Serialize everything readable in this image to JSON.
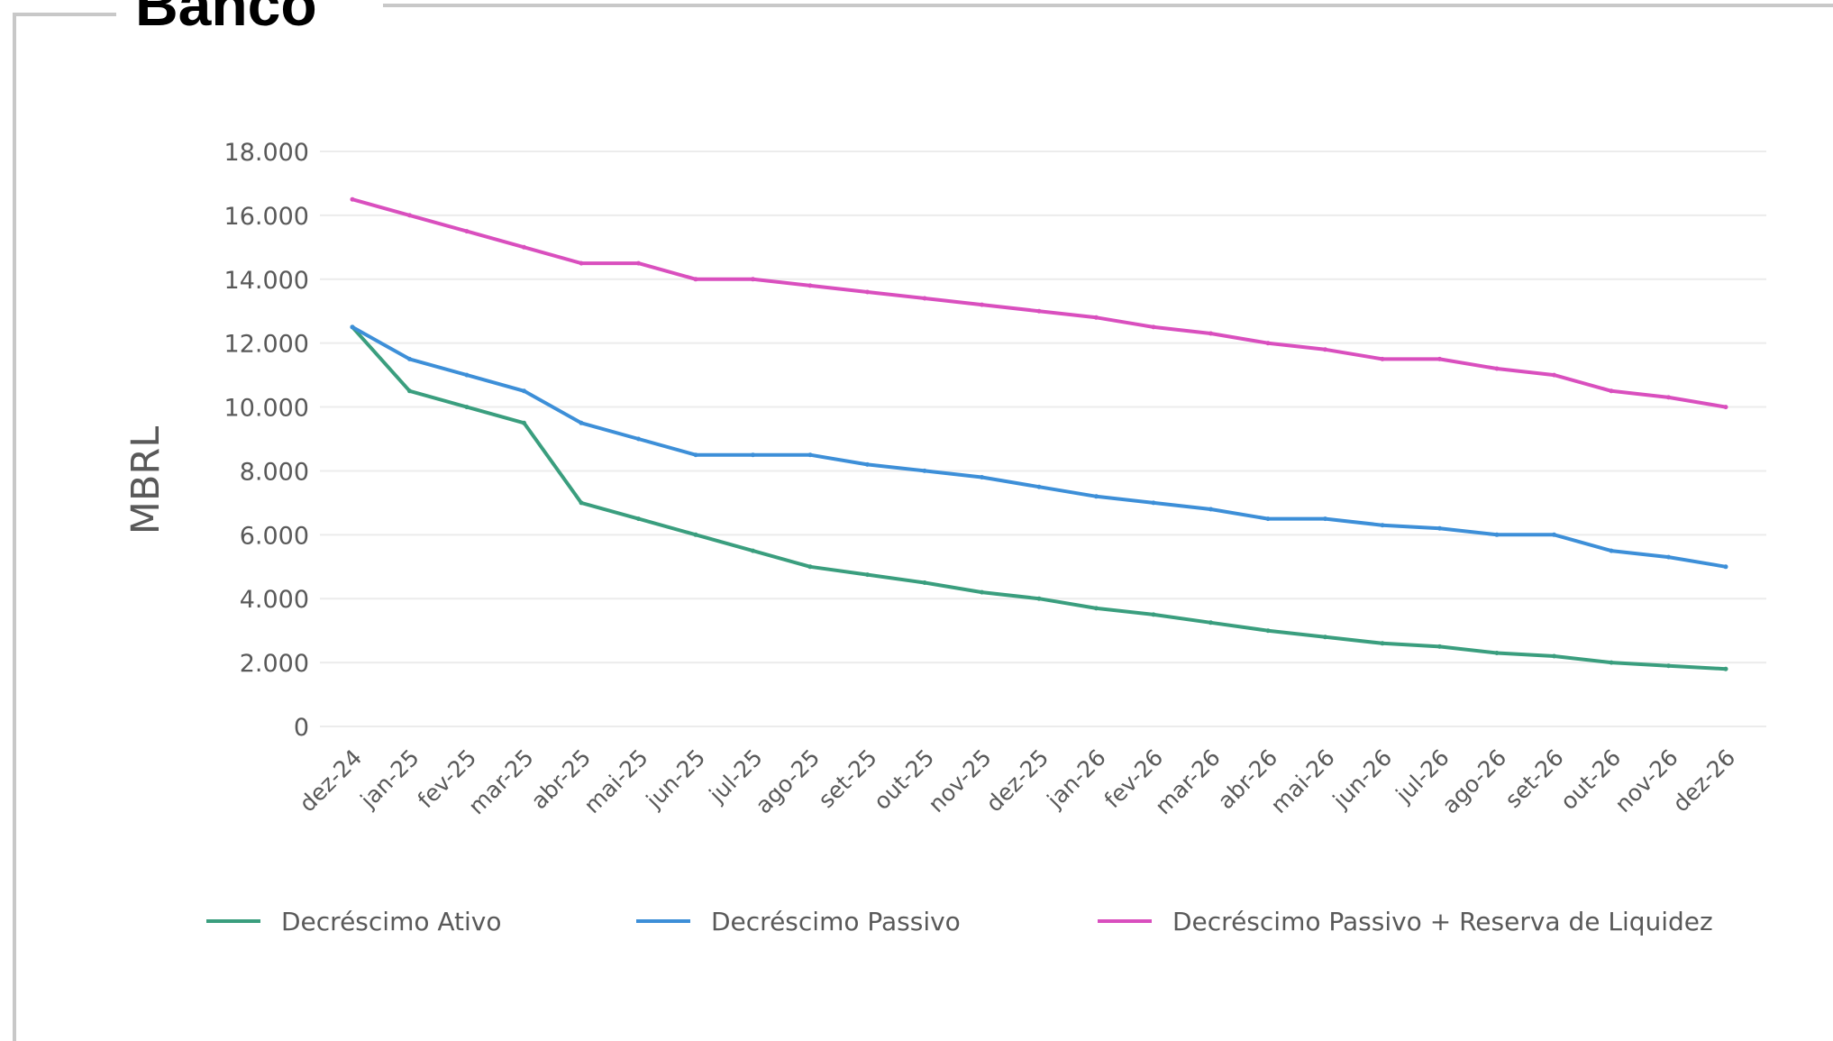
{
  "section": {
    "title": "Banco"
  },
  "chart_data": {
    "type": "line",
    "title": "",
    "xlabel": "",
    "ylabel": "MBRL",
    "ylim": [
      0,
      18000
    ],
    "yticks": [
      0,
      2000,
      4000,
      6000,
      8000,
      10000,
      12000,
      14000,
      16000,
      18000
    ],
    "ytick_labels": [
      "0",
      "2.000",
      "4.000",
      "6.000",
      "8.000",
      "10.000",
      "12.000",
      "14.000",
      "16.000",
      "18.000"
    ],
    "grid": true,
    "legend_position": "bottom",
    "categories": [
      "dez-24",
      "jan-25",
      "fev-25",
      "mar-25",
      "abr-25",
      "mai-25",
      "jun-25",
      "jul-25",
      "ago-25",
      "set-25",
      "out-25",
      "nov-25",
      "dez-25",
      "jan-26",
      "fev-26",
      "mar-26",
      "abr-26",
      "mai-26",
      "jun-26",
      "jul-26",
      "ago-26",
      "set-26",
      "out-26",
      "nov-26",
      "dez-26"
    ],
    "series": [
      {
        "name": "Decréscimo Ativo",
        "color": "#3a9e7e",
        "values": [
          12500,
          10500,
          10000,
          9500,
          7000,
          6500,
          6000,
          5500,
          5000,
          4750,
          4500,
          4200,
          4000,
          3700,
          3500,
          3250,
          3000,
          2800,
          2600,
          2500,
          2300,
          2200,
          2000,
          1900,
          1800
        ]
      },
      {
        "name": "Decréscimo Passivo",
        "color": "#3d8fd8",
        "values": [
          12500,
          11500,
          11000,
          10500,
          9500,
          9000,
          8500,
          8500,
          8500,
          8200,
          8000,
          7800,
          7500,
          7200,
          7000,
          6800,
          6500,
          6500,
          6300,
          6200,
          6000,
          6000,
          5500,
          5300,
          5000
        ]
      },
      {
        "name": "Decréscimo Passivo + Reserva de Liquidez",
        "color": "#d94fbe",
        "values": [
          16500,
          16000,
          15500,
          15000,
          14500,
          14500,
          14000,
          14000,
          13800,
          13600,
          13400,
          13200,
          13000,
          12800,
          12500,
          12300,
          12000,
          11800,
          11500,
          11500,
          11200,
          11000,
          10500,
          10300,
          10000
        ]
      }
    ]
  }
}
